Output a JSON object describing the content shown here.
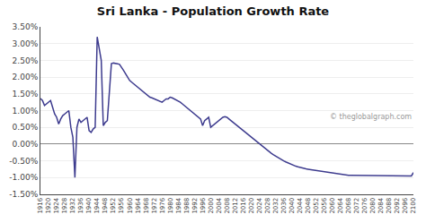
{
  "chart_data": {
    "type": "line",
    "title": "Sri Lanka - Population Growth Rate",
    "annotations": [
      {
        "text": "© theglobalgraph.com"
      }
    ],
    "color": "#3d3b8e",
    "grid": true,
    "x": [
      1916,
      1917,
      1918,
      1919,
      1920,
      1921,
      1922,
      1923,
      1924,
      1925,
      1926,
      1927,
      1928,
      1929,
      1930,
      1931,
      1932,
      1933,
      1934,
      1935,
      1936,
      1937,
      1938,
      1939,
      1940,
      1941,
      1942,
      1943,
      1944,
      1945,
      1946,
      1947,
      1948,
      1949,
      1950,
      1951,
      1952,
      1953,
      1954,
      1955,
      1956,
      1957,
      1958,
      1959,
      1960,
      1961,
      1962,
      1963,
      1964,
      1965,
      1966,
      1967,
      1968,
      1969,
      1970,
      1971,
      1972,
      1973,
      1974,
      1975,
      1976,
      1977,
      1978,
      1979,
      1980,
      1981,
      1982,
      1983,
      1984,
      1985,
      1986,
      1987,
      1988,
      1989,
      1990,
      1991,
      1992,
      1993,
      1994,
      1995,
      1996,
      1997,
      1998,
      1999,
      2000,
      2001,
      2002,
      2003,
      2004,
      2005,
      2006,
      2007,
      2008,
      2009,
      2010,
      2011,
      2012,
      2013,
      2014,
      2015,
      2016,
      2017,
      2018,
      2019,
      2020,
      2021,
      2022,
      2023,
      2024,
      2025,
      2026,
      2027,
      2028,
      2029,
      2030,
      2031,
      2032,
      2033,
      2034,
      2035,
      2036,
      2037,
      2038,
      2039,
      2040,
      2041,
      2042,
      2043,
      2044,
      2045,
      2046,
      2047,
      2048,
      2049,
      2050,
      2051,
      2052,
      2053,
      2054,
      2055,
      2056,
      2057,
      2058,
      2059,
      2060,
      2061,
      2062,
      2063,
      2064,
      2065,
      2066,
      2067,
      2068,
      2069,
      2070,
      2071,
      2072,
      2073,
      2074,
      2075,
      2076,
      2077,
      2078,
      2079,
      2080,
      2081,
      2082,
      2083,
      2084,
      2085,
      2086,
      2087,
      2088,
      2089,
      2090,
      2091,
      2092,
      2093,
      2094,
      2095,
      2096,
      2097,
      2098,
      2099,
      2100
    ],
    "values": [
      1.36,
      1.3,
      1.15,
      1.2,
      1.25,
      1.3,
      1.1,
      0.9,
      0.8,
      0.6,
      0.75,
      0.85,
      0.9,
      0.95,
      1.0,
      0.5,
      0.2,
      -1.0,
      0.5,
      0.75,
      0.65,
      0.7,
      0.75,
      0.8,
      0.4,
      0.35,
      0.45,
      0.5,
      3.2,
      2.9,
      2.5,
      0.55,
      0.65,
      0.7,
      1.7,
      2.4,
      2.42,
      2.42,
      2.4,
      2.38,
      2.3,
      2.2,
      2.1,
      2.0,
      1.9,
      1.85,
      1.8,
      1.75,
      1.7,
      1.65,
      1.6,
      1.55,
      1.5,
      1.45,
      1.4,
      1.38,
      1.35,
      1.32,
      1.3,
      1.28,
      1.25,
      1.3,
      1.35,
      1.35,
      1.4,
      1.38,
      1.35,
      1.33,
      1.3,
      1.25,
      1.2,
      1.15,
      1.1,
      1.05,
      1.0,
      0.95,
      0.9,
      0.85,
      0.8,
      0.75,
      0.55,
      0.7,
      0.75,
      0.8,
      0.5,
      0.55,
      0.6,
      0.65,
      0.7,
      0.75,
      0.8,
      0.82,
      0.8,
      0.75,
      0.7,
      0.65,
      0.6,
      0.55,
      0.5,
      0.45,
      0.4,
      0.35,
      0.3,
      0.25,
      0.2,
      0.15,
      0.1,
      0.05,
      0.0,
      -0.05,
      -0.1,
      -0.15,
      -0.2,
      -0.25,
      -0.28,
      -0.32,
      -0.36,
      -0.4,
      -0.43,
      -0.46,
      -0.5,
      -0.53,
      -0.56,
      -0.59,
      -0.62,
      -0.64,
      -0.66,
      -0.68,
      -0.7,
      -0.72,
      -0.73,
      -0.74,
      -0.75,
      -0.76,
      -0.77,
      -0.78,
      -0.79,
      -0.8,
      -0.81,
      -0.82,
      -0.83,
      -0.84,
      -0.85,
      -0.86,
      -0.87,
      -0.88,
      -0.89,
      -0.9,
      -0.91,
      -0.91,
      -0.92,
      -0.92,
      -0.93,
      -0.93,
      -0.93,
      -0.94,
      -0.94,
      -0.94,
      -0.94,
      -0.95,
      -0.95,
      -0.95,
      -0.95,
      -0.95,
      -0.95,
      -0.95,
      -0.95,
      -0.95,
      -0.95,
      -0.95,
      -0.95,
      -0.95,
      -0.95,
      -0.95,
      -0.95,
      -0.95,
      -0.95,
      -0.95,
      -0.95,
      -0.95,
      -0.95,
      -0.95,
      -0.95,
      -0.95,
      -0.85
    ],
    "xlim": [
      1916,
      2100
    ],
    "xticks": [
      1916,
      1920,
      1924,
      1928,
      1932,
      1936,
      1940,
      1944,
      1948,
      1952,
      1956,
      1960,
      1964,
      1968,
      1972,
      1976,
      1980,
      1984,
      1988,
      1992,
      1996,
      2000,
      2004,
      2008,
      2012,
      2016,
      2020,
      2024,
      2028,
      2032,
      2036,
      2040,
      2044,
      2048,
      2052,
      2056,
      2060,
      2064,
      2068,
      2072,
      2076,
      2080,
      2084,
      2088,
      2092,
      2096,
      2100
    ],
    "ylim": [
      -1.5,
      3.5
    ],
    "yticks": [
      {
        "value": -1.5,
        "label": "-1.50%"
      },
      {
        "value": -1.0,
        "label": "-1.00%"
      },
      {
        "value": -0.5,
        "label": "-0.50%"
      },
      {
        "value": 0.0,
        "label": "0.00%"
      },
      {
        "value": 0.5,
        "label": "0.50%"
      },
      {
        "value": 1.0,
        "label": "1.00%"
      },
      {
        "value": 1.5,
        "label": "1.50%"
      },
      {
        "value": 2.0,
        "label": "2.00%"
      },
      {
        "value": 2.5,
        "label": "2.50%"
      },
      {
        "value": 3.0,
        "label": "3.00%"
      },
      {
        "value": 3.5,
        "label": "3.50%"
      }
    ]
  }
}
